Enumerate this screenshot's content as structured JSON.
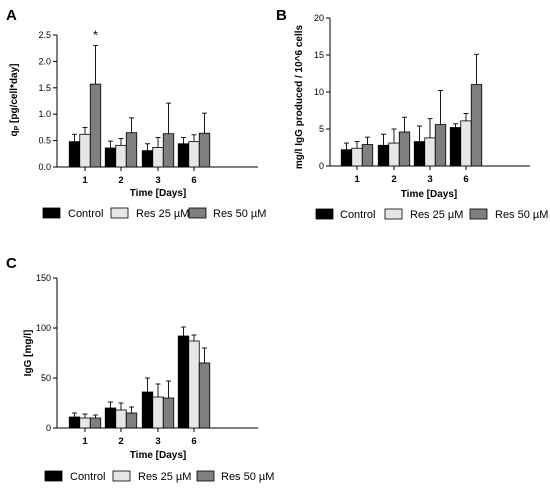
{
  "colors": {
    "control": "#000000",
    "res25": "#e6e6e6",
    "res50": "#7f7f7f"
  },
  "chart_data": [
    {
      "type": "bar",
      "panel": "A",
      "ylabel": "q_P [pg/cell*day]",
      "ylabel_main": "q",
      "ylabel_sub": "P",
      "ylabel_rest": " [pg/cell*day]",
      "xlabel": "Time [Days]",
      "categories": [
        "1",
        "2",
        "3",
        "6"
      ],
      "ylim": [
        0,
        2.5
      ],
      "yticks": [
        0,
        0.5,
        1,
        1.5,
        2,
        2.5
      ],
      "ytick_labels": [
        "0.0",
        "0.5",
        "1.0",
        "1.5",
        "2.0",
        "2.5"
      ],
      "series": [
        {
          "name": "Control",
          "values": [
            0.48,
            0.36,
            0.31,
            0.44
          ],
          "errors": [
            0.14,
            0.13,
            0.13,
            0.12
          ]
        },
        {
          "name": "Res 25 µM",
          "values": [
            0.62,
            0.41,
            0.37,
            0.48
          ],
          "errors": [
            0.13,
            0.13,
            0.19,
            0.13
          ]
        },
        {
          "name": "Res 50 µM",
          "values": [
            1.57,
            0.65,
            0.63,
            0.64
          ],
          "errors": [
            0.73,
            0.28,
            0.58,
            0.38
          ]
        }
      ],
      "annotations": [
        {
          "text": "*",
          "category": "1",
          "series": 2
        }
      ],
      "legend": "bottom"
    },
    {
      "type": "bar",
      "panel": "B",
      "ylabel": "mg/l IgG produced / 10^6 cells",
      "xlabel": "Time [Days]",
      "categories": [
        "1",
        "2",
        "3",
        "6"
      ],
      "ylim": [
        0,
        20
      ],
      "yticks": [
        0,
        5,
        10,
        15,
        20
      ],
      "ytick_labels": [
        "0",
        "5",
        "10",
        "15",
        "20"
      ],
      "series": [
        {
          "name": "Control",
          "values": [
            2.2,
            2.8,
            3.3,
            5.2
          ],
          "errors": [
            0.9,
            1.5,
            2.1,
            0.5
          ]
        },
        {
          "name": "Res 25 µM",
          "values": [
            2.4,
            3.1,
            3.8,
            6.1
          ],
          "errors": [
            0.9,
            1.9,
            2.6,
            1.0
          ]
        },
        {
          "name": "Res 50 µM",
          "values": [
            2.9,
            4.6,
            5.6,
            11.0
          ],
          "errors": [
            1.0,
            2.0,
            4.6,
            4.1
          ]
        }
      ],
      "legend": "bottom"
    },
    {
      "type": "bar",
      "panel": "C",
      "ylabel": "IgG [mg/l]",
      "xlabel": "Time [Days]",
      "categories": [
        "1",
        "2",
        "3",
        "6"
      ],
      "ylim": [
        0,
        150
      ],
      "yticks": [
        0,
        50,
        100,
        150
      ],
      "ytick_labels": [
        "0",
        "50",
        "100",
        "150"
      ],
      "series": [
        {
          "name": "Control",
          "values": [
            11,
            20,
            36,
            92
          ],
          "errors": [
            4,
            6,
            14,
            9
          ]
        },
        {
          "name": "Res 25 µM",
          "values": [
            10,
            18,
            31,
            87
          ],
          "errors": [
            4,
            7,
            13,
            6
          ]
        },
        {
          "name": "Res 50 µM",
          "values": [
            10,
            15,
            30,
            65
          ],
          "errors": [
            3,
            6,
            17,
            15
          ]
        }
      ],
      "legend": "bottom"
    }
  ]
}
